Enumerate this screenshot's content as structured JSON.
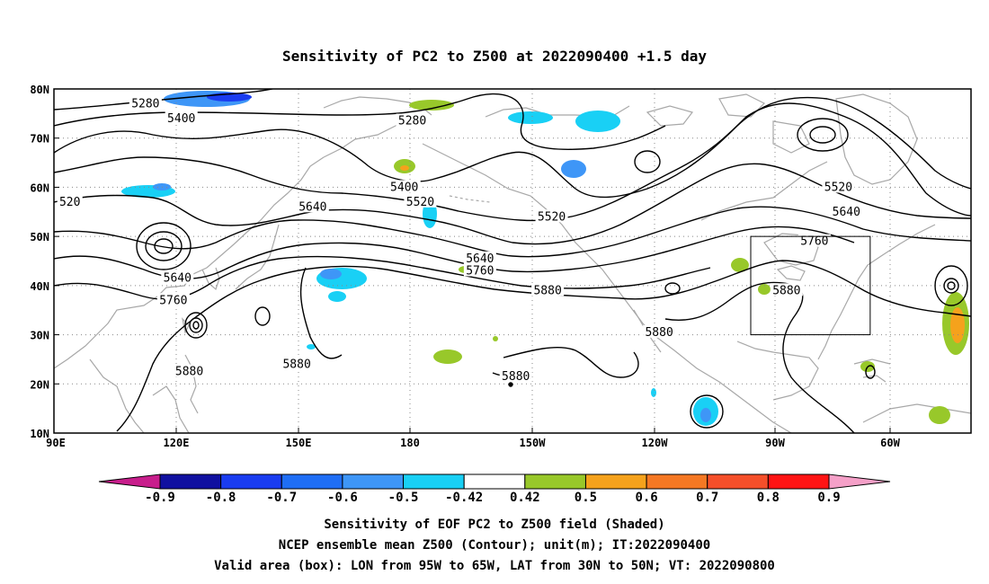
{
  "title": "Sensitivity of PC2 to Z500 at 2022090400 +1.5 day",
  "lon_ticks": [
    "90E",
    "120E",
    "150E",
    "180",
    "150W",
    "120W",
    "90W",
    "60W"
  ],
  "lat_ticks": [
    "80N",
    "70N",
    "60N",
    "50N",
    "40N",
    "30N",
    "20N",
    "10N"
  ],
  "contour_labels": [
    {
      "text": "5280",
      "lon": 113,
      "lat": 77
    },
    {
      "text": "5400",
      "lon": 122,
      "lat": 74
    },
    {
      "text": "5280",
      "lon": 180,
      "lat": 73.5
    },
    {
      "text": "520",
      "lon": 94,
      "lat": 57
    },
    {
      "text": "5400",
      "lon": 178,
      "lat": 60
    },
    {
      "text": "5520",
      "lon": 182,
      "lat": 57
    },
    {
      "text": "5640",
      "lon": 155,
      "lat": 56
    },
    {
      "text": "5520",
      "lon": 215,
      "lat": 54
    },
    {
      "text": "5520",
      "lon": 287,
      "lat": 60
    },
    {
      "text": "5640",
      "lon": 289,
      "lat": 55
    },
    {
      "text": "5760",
      "lon": 281,
      "lat": 49
    },
    {
      "text": "5640",
      "lon": 121,
      "lat": 41.5
    },
    {
      "text": "5760",
      "lon": 120,
      "lat": 37
    },
    {
      "text": "5640",
      "lon": 197,
      "lat": 45.5
    },
    {
      "text": "5760",
      "lon": 197,
      "lat": 43
    },
    {
      "text": "5880",
      "lon": 214,
      "lat": 39
    },
    {
      "text": "5880",
      "lon": 274,
      "lat": 39
    },
    {
      "text": "5880",
      "lon": 151,
      "lat": 24
    },
    {
      "text": "5880",
      "lon": 124,
      "lat": 22.5
    },
    {
      "text": "5880",
      "lon": 242,
      "lat": 30.5
    },
    {
      "text": "5880",
      "lon": 206,
      "lat": 21.5
    }
  ],
  "valid_box": {
    "lon_from": 265,
    "lon_to": 295,
    "lat_from": 30,
    "lat_to": 50
  },
  "colorbar": {
    "labels": [
      "-0.9",
      "-0.8",
      "-0.7",
      "-0.6",
      "-0.5",
      "-0.42",
      "0.42",
      "0.5",
      "0.6",
      "0.7",
      "0.8",
      "0.9"
    ],
    "colors": [
      "#1010a0",
      "#1a3cf0",
      "#1f6ef5",
      "#3e96f7",
      "#19d0f5",
      "#ffffff",
      "#98c82a",
      "#f5a21c",
      "#f57823",
      "#f54f2a",
      "#ff1414"
    ],
    "left_triangle": "#c81e8c",
    "right_triangle": "#f5a0c8"
  },
  "captions": [
    "Sensitivity of EOF PC2 to Z500 field (Shaded)",
    "NCEP ensemble mean Z500 (Contour); unit(m); IT:2022090400",
    "Valid area (box): LON from 95W to 65W, LAT from 30N to 50N; VT: 2022090800"
  ]
}
